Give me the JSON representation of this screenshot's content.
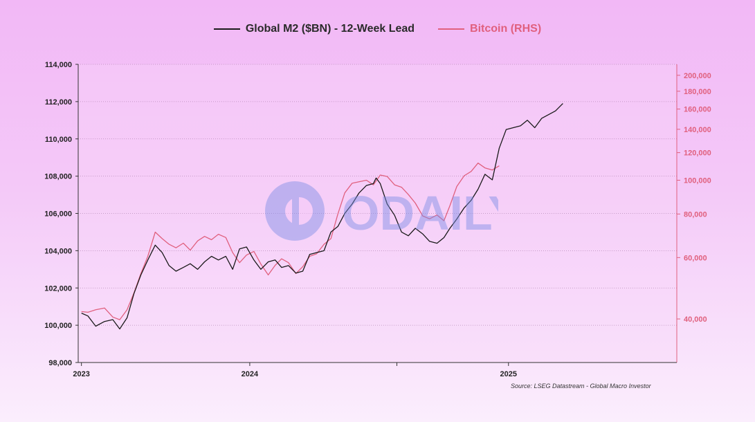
{
  "chart_data": {
    "type": "line",
    "legend_position": "top-center",
    "series": [
      {
        "name": "Global M2 ($BN) - 12-Week Lead",
        "axis": "left",
        "color": "#1a1a1a",
        "points": [
          [
            "2023-01-01",
            100650
          ],
          [
            "2023-01-15",
            100500
          ],
          [
            "2023-02-01",
            99950
          ],
          [
            "2023-02-20",
            100200
          ],
          [
            "2023-03-10",
            100300
          ],
          [
            "2023-03-25",
            99800
          ],
          [
            "2023-04-10",
            100400
          ],
          [
            "2023-04-25",
            101700
          ],
          [
            "2023-05-10",
            102700
          ],
          [
            "2023-05-25",
            103500
          ],
          [
            "2023-06-10",
            104300
          ],
          [
            "2023-06-25",
            103900
          ],
          [
            "2023-07-10",
            103200
          ],
          [
            "2023-07-25",
            102900
          ],
          [
            "2023-08-10",
            103100
          ],
          [
            "2023-08-25",
            103300
          ],
          [
            "2023-09-10",
            103000
          ],
          [
            "2023-09-25",
            103400
          ],
          [
            "2023-10-10",
            103700
          ],
          [
            "2023-10-25",
            103500
          ],
          [
            "2023-11-10",
            103700
          ],
          [
            "2023-11-25",
            103000
          ],
          [
            "2023-12-10",
            104100
          ],
          [
            "2023-12-25",
            104200
          ],
          [
            "2024-01-10",
            103500
          ],
          [
            "2024-01-25",
            103000
          ],
          [
            "2024-02-10",
            103400
          ],
          [
            "2024-02-25",
            103500
          ],
          [
            "2024-03-10",
            103100
          ],
          [
            "2024-03-25",
            103200
          ],
          [
            "2024-04-10",
            102800
          ],
          [
            "2024-04-25",
            102900
          ],
          [
            "2024-05-10",
            103800
          ],
          [
            "2024-05-25",
            103900
          ],
          [
            "2024-06-10",
            104000
          ],
          [
            "2024-06-25",
            105000
          ],
          [
            "2024-07-10",
            105300
          ],
          [
            "2024-07-25",
            106000
          ],
          [
            "2024-08-10",
            106500
          ],
          [
            "2024-08-25",
            107100
          ],
          [
            "2024-09-10",
            107500
          ],
          [
            "2024-09-25",
            107600
          ],
          [
            "2024-10-01",
            107900
          ],
          [
            "2024-10-10",
            107600
          ],
          [
            "2024-10-25",
            106500
          ],
          [
            "2024-11-10",
            105900
          ],
          [
            "2024-11-25",
            105000
          ],
          [
            "2024-12-10",
            104800
          ],
          [
            "2024-12-25",
            105200
          ],
          [
            "2025-01-10",
            104900
          ],
          [
            "2025-01-25",
            104500
          ],
          [
            "2025-02-10",
            104400
          ],
          [
            "2025-02-25",
            104700
          ],
          [
            "2025-03-10",
            105200
          ],
          [
            "2025-03-25",
            105700
          ],
          [
            "2025-04-10",
            106300
          ],
          [
            "2025-04-25",
            106700
          ],
          [
            "2025-05-10",
            107300
          ],
          [
            "2025-05-25",
            108100
          ],
          [
            "2025-06-10",
            107800
          ],
          [
            "2025-06-25",
            109500
          ],
          [
            "2025-07-10",
            110500
          ],
          [
            "2025-07-25",
            110600
          ],
          [
            "2025-08-10",
            110700
          ],
          [
            "2025-08-25",
            111000
          ],
          [
            "2025-09-10",
            110600
          ],
          [
            "2025-09-25",
            111100
          ],
          [
            "2025-10-10",
            111300
          ],
          [
            "2025-10-25",
            111500
          ],
          [
            "2025-11-10",
            111900
          ]
        ]
      },
      {
        "name": "Bitcoin (RHS)",
        "axis": "right",
        "color": "#e0607e",
        "points": [
          [
            "2023-01-01",
            42000
          ],
          [
            "2023-01-15",
            41800
          ],
          [
            "2023-02-01",
            42500
          ],
          [
            "2023-02-20",
            43000
          ],
          [
            "2023-03-10",
            40500
          ],
          [
            "2023-03-25",
            39800
          ],
          [
            "2023-04-10",
            42500
          ],
          [
            "2023-04-25",
            47500
          ],
          [
            "2023-05-10",
            54000
          ],
          [
            "2023-05-25",
            60500
          ],
          [
            "2023-06-10",
            71000
          ],
          [
            "2023-06-25",
            68000
          ],
          [
            "2023-07-10",
            65500
          ],
          [
            "2023-07-25",
            64000
          ],
          [
            "2023-08-10",
            66000
          ],
          [
            "2023-08-25",
            63000
          ],
          [
            "2023-09-10",
            67000
          ],
          [
            "2023-09-25",
            69000
          ],
          [
            "2023-10-10",
            67500
          ],
          [
            "2023-10-25",
            70000
          ],
          [
            "2023-11-10",
            68500
          ],
          [
            "2023-11-25",
            62000
          ],
          [
            "2023-12-10",
            58000
          ],
          [
            "2023-12-25",
            61000
          ],
          [
            "2024-01-10",
            62500
          ],
          [
            "2024-01-25",
            57500
          ],
          [
            "2024-02-10",
            53500
          ],
          [
            "2024-02-25",
            57000
          ],
          [
            "2024-03-10",
            59500
          ],
          [
            "2024-03-25",
            58000
          ],
          [
            "2024-04-10",
            54000
          ],
          [
            "2024-04-25",
            56500
          ],
          [
            "2024-05-10",
            60500
          ],
          [
            "2024-05-25",
            61500
          ],
          [
            "2024-06-10",
            65500
          ],
          [
            "2024-06-25",
            68000
          ],
          [
            "2024-07-10",
            80000
          ],
          [
            "2024-07-25",
            92000
          ],
          [
            "2024-08-10",
            98000
          ],
          [
            "2024-08-25",
            99000
          ],
          [
            "2024-09-10",
            100000
          ],
          [
            "2024-09-25",
            97000
          ],
          [
            "2024-10-10",
            103500
          ],
          [
            "2024-10-25",
            102500
          ],
          [
            "2024-11-10",
            97000
          ],
          [
            "2024-11-25",
            95500
          ],
          [
            "2024-12-10",
            91000
          ],
          [
            "2024-12-25",
            86000
          ],
          [
            "2025-01-10",
            79000
          ],
          [
            "2025-01-25",
            77500
          ],
          [
            "2025-02-10",
            79500
          ],
          [
            "2025-02-25",
            76500
          ],
          [
            "2025-03-10",
            84500
          ],
          [
            "2025-03-25",
            96000
          ],
          [
            "2025-04-10",
            103000
          ],
          [
            "2025-04-25",
            106000
          ],
          [
            "2025-05-10",
            112000
          ],
          [
            "2025-05-25",
            108500
          ],
          [
            "2025-06-10",
            107000
          ],
          [
            "2025-06-25",
            110000
          ]
        ]
      }
    ],
    "xlim": [
      "2022-12-25",
      "2026-07-15"
    ],
    "x_ticks": [
      {
        "date": "2023-01-01",
        "label": "2023"
      },
      {
        "date": "2024-01-01",
        "label": "2024"
      },
      {
        "date": "2024-11-15",
        "label": ""
      },
      {
        "date": "2025-07-15",
        "label": "2025"
      }
    ],
    "y_left": {
      "min": 98000,
      "max": 114000,
      "ticks": [
        98000,
        100000,
        102000,
        104000,
        106000,
        108000,
        110000,
        112000,
        114000
      ],
      "labels": [
        "98,000",
        "100,000",
        "102,000",
        "104,000",
        "106,000",
        "108,000",
        "110,000",
        "112,000",
        "114,000"
      ]
    },
    "y_right": {
      "scale": "log",
      "min": 30000,
      "max": 215000,
      "ticks": [
        40000,
        60000,
        80000,
        100000,
        120000,
        140000,
        160000,
        180000,
        200000
      ],
      "labels": [
        "40,000",
        "60,000",
        "80,000",
        "100,000",
        "120,000",
        "140,000",
        "160,000",
        "180,000",
        "200,000"
      ],
      "color": "#e0607e"
    },
    "grid": "horizontal-dotted",
    "source": "Source: LSEG Datastream - Global Macro Investor"
  },
  "watermark": {
    "text": "ODAILY",
    "color": "#7b8de6"
  }
}
